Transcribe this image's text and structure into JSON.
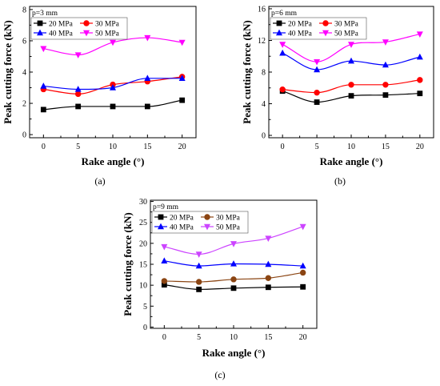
{
  "chart_data": [
    {
      "type": "line",
      "panel_label": "(a)",
      "annotation": "p=3 mm",
      "xlabel": "Rake angle (°)",
      "ylabel": "Peak cutting force (kN)",
      "x": [
        0,
        5,
        10,
        15,
        20
      ],
      "xticks": [
        "0",
        "5",
        "10",
        "15",
        "20"
      ],
      "xlim": [
        -2,
        22
      ],
      "ylim": [
        -0.2,
        8.2
      ],
      "yticks": [
        "0",
        "2",
        "4",
        "6",
        "8"
      ],
      "legend_position": "top-left",
      "series": [
        {
          "name": "20 MPa",
          "values": [
            1.6,
            1.8,
            1.8,
            1.8,
            2.2
          ],
          "color": "#000000",
          "marker": "square"
        },
        {
          "name": "30 MPa",
          "values": [
            2.9,
            2.6,
            3.2,
            3.4,
            3.7
          ],
          "color": "#ff0000",
          "marker": "circle"
        },
        {
          "name": "40 MPa",
          "values": [
            3.1,
            2.9,
            3.0,
            3.6,
            3.6
          ],
          "color": "#0000ff",
          "marker": "triangle-up"
        },
        {
          "name": "50 MPa",
          "values": [
            5.5,
            5.1,
            5.9,
            6.2,
            5.9
          ],
          "color": "#ff00ff",
          "marker": "triangle-down"
        }
      ]
    },
    {
      "type": "line",
      "panel_label": "(b)",
      "annotation": "p=6 mm",
      "xlabel": "Rake angle (°)",
      "ylabel": "Peak cutting force (kN)",
      "x": [
        0,
        5,
        10,
        15,
        20
      ],
      "xticks": [
        "0",
        "5",
        "10",
        "15",
        "20"
      ],
      "xlim": [
        -2,
        22
      ],
      "ylim": [
        -0.3,
        16.3
      ],
      "yticks": [
        "0",
        "4",
        "8",
        "12",
        "16"
      ],
      "legend_position": "top-left",
      "series": [
        {
          "name": "20 MPa",
          "values": [
            5.6,
            4.2,
            5.0,
            5.1,
            5.3
          ],
          "color": "#000000",
          "marker": "square"
        },
        {
          "name": "30 MPa",
          "values": [
            5.8,
            5.4,
            6.4,
            6.4,
            7.0
          ],
          "color": "#ff0000",
          "marker": "circle"
        },
        {
          "name": "40 MPa",
          "values": [
            10.4,
            8.3,
            9.4,
            8.9,
            9.9
          ],
          "color": "#0000ff",
          "marker": "triangle-up"
        },
        {
          "name": "50 MPa",
          "values": [
            11.5,
            9.3,
            11.5,
            11.8,
            12.8
          ],
          "color": "#ff00ff",
          "marker": "triangle-down"
        }
      ]
    },
    {
      "type": "line",
      "panel_label": "(c)",
      "annotation": "p=9 mm",
      "xlabel": "Rake angle (°)",
      "ylabel": "Peak cutting force (kN)",
      "x": [
        0,
        5,
        10,
        15,
        20
      ],
      "xticks": [
        "0",
        "5",
        "10",
        "15",
        "20"
      ],
      "xlim": [
        -2,
        22
      ],
      "ylim": [
        -0.3,
        30.3
      ],
      "yticks": [
        "0",
        "5",
        "10",
        "15",
        "20",
        "25",
        "30"
      ],
      "legend_position": "top-left",
      "series": [
        {
          "name": "20 MPa",
          "values": [
            10.1,
            9.0,
            9.3,
            9.5,
            9.6
          ],
          "color": "#000000",
          "marker": "square"
        },
        {
          "name": "30 MPa",
          "values": [
            11.0,
            10.8,
            11.4,
            11.7,
            13.0
          ],
          "color": "#8b4513",
          "marker": "circle"
        },
        {
          "name": "40 MPa",
          "values": [
            15.8,
            14.6,
            15.1,
            15.0,
            14.6
          ],
          "color": "#0000ff",
          "marker": "triangle-up"
        },
        {
          "name": "50 MPa",
          "values": [
            19.2,
            17.4,
            19.9,
            21.2,
            24.0
          ],
          "color": "#cc44ff",
          "marker": "triangle-down"
        }
      ]
    }
  ]
}
